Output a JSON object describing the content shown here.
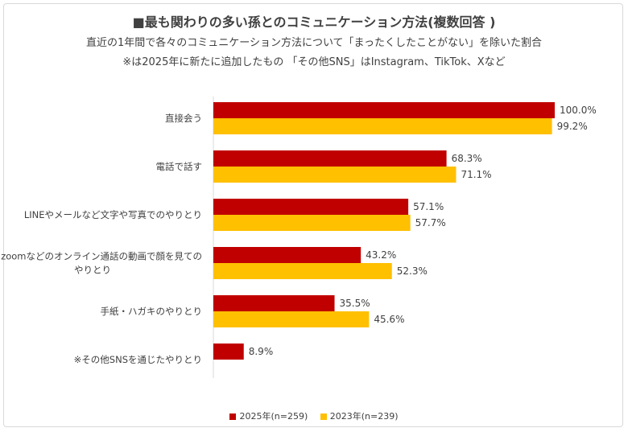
{
  "chart_data": {
    "type": "bar",
    "orientation": "horizontal",
    "title": "■最も関わりの多い孫とのコミュニケーション方法(複数回答 )",
    "subtitle": "直近の1年間で各々のコミュニケーション方法について「まったくしたことがない」を除いた割合",
    "note": "※は2025年に新たに追加したもの 「その他SNS」はInstagram、TikTok、Xなど",
    "categories": [
      [
        "直接会う"
      ],
      [
        "電話で話す"
      ],
      [
        "LINEやメールなど文字や写真でのやりとり"
      ],
      [
        "zoomなどのオンライン通話の動画で顔を見ての",
        "やりとり"
      ],
      [
        "手紙・ハガキのやりとり"
      ],
      [
        "※その他SNSを通じたやりとり"
      ]
    ],
    "series": [
      {
        "name": "2025年(n=259)",
        "color": "#c00000",
        "values": [
          100.0,
          68.3,
          57.1,
          43.2,
          35.5,
          8.9
        ]
      },
      {
        "name": "2023年(n=239)",
        "color": "#ffc000",
        "values": [
          99.2,
          71.1,
          57.7,
          52.3,
          45.6,
          null
        ]
      }
    ],
    "value_suffix": "%",
    "xlim": [
      0,
      100
    ],
    "legend_position": "bottom",
    "grid": false
  }
}
